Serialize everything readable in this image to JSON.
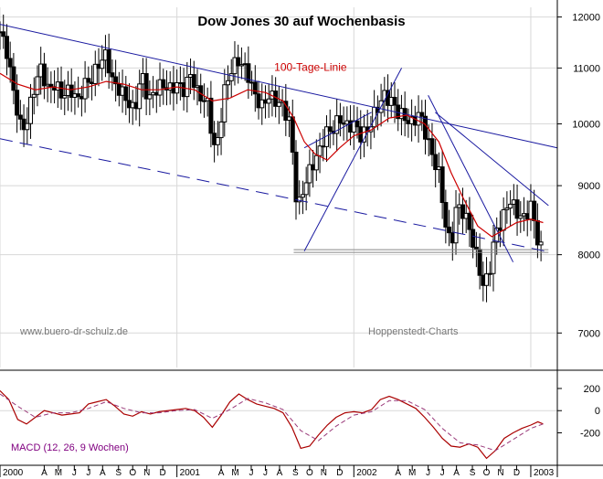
{
  "chart_data": [
    {
      "type": "candlestick",
      "title": "Dow Jones 30 auf Wochenbasis",
      "watermarks": [
        "www.buero-dr-schulz.de",
        "Hoppenstedt-Charts"
      ],
      "y_scale": "log",
      "ylim": [
        6600,
        12200
      ],
      "y_ticks": [
        12000,
        11000,
        10000,
        9000,
        8000,
        7000
      ],
      "x_range": [
        2000.0,
        2003.15
      ],
      "x_tick_labels": [
        {
          "x": 2000.0,
          "label": "2000"
        },
        {
          "x": 2000.25,
          "label": "A"
        },
        {
          "x": 2000.33,
          "label": "M"
        },
        {
          "x": 2000.42,
          "label": "J"
        },
        {
          "x": 2000.5,
          "label": "J"
        },
        {
          "x": 2000.58,
          "label": "A"
        },
        {
          "x": 2000.67,
          "label": "S"
        },
        {
          "x": 2000.75,
          "label": "O"
        },
        {
          "x": 2000.83,
          "label": "N"
        },
        {
          "x": 2000.92,
          "label": "D"
        },
        {
          "x": 2001.0,
          "label": "2001"
        },
        {
          "x": 2001.25,
          "label": "A"
        },
        {
          "x": 2001.33,
          "label": "M"
        },
        {
          "x": 2001.42,
          "label": "J"
        },
        {
          "x": 2001.5,
          "label": "J"
        },
        {
          "x": 2001.58,
          "label": "A"
        },
        {
          "x": 2001.67,
          "label": "S"
        },
        {
          "x": 2001.75,
          "label": "O"
        },
        {
          "x": 2001.83,
          "label": "N"
        },
        {
          "x": 2001.92,
          "label": "D"
        },
        {
          "x": 2002.0,
          "label": "2002"
        },
        {
          "x": 2002.25,
          "label": "A"
        },
        {
          "x": 2002.33,
          "label": "M"
        },
        {
          "x": 2002.42,
          "label": "J"
        },
        {
          "x": 2002.5,
          "label": "J"
        },
        {
          "x": 2002.58,
          "label": "A"
        },
        {
          "x": 2002.67,
          "label": "S"
        },
        {
          "x": 2002.75,
          "label": "O"
        },
        {
          "x": 2002.83,
          "label": "N"
        },
        {
          "x": 2002.92,
          "label": "D"
        },
        {
          "x": 2003.0,
          "label": "2003"
        }
      ],
      "price_points": [
        {
          "x": 2000.0,
          "y": 11700
        },
        {
          "x": 2000.04,
          "y": 11300
        },
        {
          "x": 2000.08,
          "y": 10500
        },
        {
          "x": 2000.12,
          "y": 9900
        },
        {
          "x": 2000.15,
          "y": 10000
        },
        {
          "x": 2000.19,
          "y": 10600
        },
        {
          "x": 2000.23,
          "y": 11000
        },
        {
          "x": 2000.27,
          "y": 10600
        },
        {
          "x": 2000.31,
          "y": 10700
        },
        {
          "x": 2000.35,
          "y": 10500
        },
        {
          "x": 2000.4,
          "y": 10600
        },
        {
          "x": 2000.44,
          "y": 10400
        },
        {
          "x": 2000.48,
          "y": 10700
        },
        {
          "x": 2000.52,
          "y": 10800
        },
        {
          "x": 2000.56,
          "y": 11100
        },
        {
          "x": 2000.6,
          "y": 11250
        },
        {
          "x": 2000.64,
          "y": 10700
        },
        {
          "x": 2000.68,
          "y": 10600
        },
        {
          "x": 2000.72,
          "y": 10400
        },
        {
          "x": 2000.76,
          "y": 10200
        },
        {
          "x": 2000.8,
          "y": 10900
        },
        {
          "x": 2000.84,
          "y": 10400
        },
        {
          "x": 2000.88,
          "y": 10600
        },
        {
          "x": 2000.92,
          "y": 10700
        },
        {
          "x": 2000.96,
          "y": 10600
        },
        {
          "x": 2001.0,
          "y": 10700
        },
        {
          "x": 2001.04,
          "y": 10600
        },
        {
          "x": 2001.08,
          "y": 10900
        },
        {
          "x": 2001.12,
          "y": 10500
        },
        {
          "x": 2001.17,
          "y": 10400
        },
        {
          "x": 2001.21,
          "y": 9600
        },
        {
          "x": 2001.23,
          "y": 9700
        },
        {
          "x": 2001.27,
          "y": 10600
        },
        {
          "x": 2001.31,
          "y": 11000
        },
        {
          "x": 2001.35,
          "y": 11150
        },
        {
          "x": 2001.4,
          "y": 10900
        },
        {
          "x": 2001.44,
          "y": 10500
        },
        {
          "x": 2001.48,
          "y": 10300
        },
        {
          "x": 2001.52,
          "y": 10500
        },
        {
          "x": 2001.56,
          "y": 10400
        },
        {
          "x": 2001.6,
          "y": 10300
        },
        {
          "x": 2001.64,
          "y": 10000
        },
        {
          "x": 2001.68,
          "y": 8600
        },
        {
          "x": 2001.72,
          "y": 9000
        },
        {
          "x": 2001.76,
          "y": 9300
        },
        {
          "x": 2001.8,
          "y": 9500
        },
        {
          "x": 2001.84,
          "y": 9850
        },
        {
          "x": 2001.88,
          "y": 9900
        },
        {
          "x": 2001.92,
          "y": 10100
        },
        {
          "x": 2001.96,
          "y": 9950
        },
        {
          "x": 2002.0,
          "y": 10000
        },
        {
          "x": 2002.04,
          "y": 9800
        },
        {
          "x": 2002.08,
          "y": 9900
        },
        {
          "x": 2002.12,
          "y": 10200
        },
        {
          "x": 2002.17,
          "y": 10500
        },
        {
          "x": 2002.21,
          "y": 10400
        },
        {
          "x": 2002.25,
          "y": 10200
        },
        {
          "x": 2002.29,
          "y": 10100
        },
        {
          "x": 2002.33,
          "y": 10000
        },
        {
          "x": 2002.37,
          "y": 10200
        },
        {
          "x": 2002.4,
          "y": 9900
        },
        {
          "x": 2002.44,
          "y": 9500
        },
        {
          "x": 2002.48,
          "y": 9200
        },
        {
          "x": 2002.52,
          "y": 8400
        },
        {
          "x": 2002.55,
          "y": 8100
        },
        {
          "x": 2002.58,
          "y": 8700
        },
        {
          "x": 2002.62,
          "y": 8600
        },
        {
          "x": 2002.65,
          "y": 8400
        },
        {
          "x": 2002.69,
          "y": 8000
        },
        {
          "x": 2002.73,
          "y": 7600
        },
        {
          "x": 2002.76,
          "y": 7700
        },
        {
          "x": 2002.8,
          "y": 8300
        },
        {
          "x": 2002.84,
          "y": 8500
        },
        {
          "x": 2002.88,
          "y": 8800
        },
        {
          "x": 2002.92,
          "y": 8600
        },
        {
          "x": 2002.96,
          "y": 8500
        },
        {
          "x": 2003.0,
          "y": 8700
        },
        {
          "x": 2003.04,
          "y": 8200
        },
        {
          "x": 2003.07,
          "y": 8000
        }
      ],
      "ma_series": {
        "name": "100-Tage-Linie",
        "points": [
          {
            "x": 2000.0,
            "y": 10900
          },
          {
            "x": 2000.1,
            "y": 10700
          },
          {
            "x": 2000.2,
            "y": 10600
          },
          {
            "x": 2000.3,
            "y": 10650
          },
          {
            "x": 2000.4,
            "y": 10600
          },
          {
            "x": 2000.5,
            "y": 10650
          },
          {
            "x": 2000.6,
            "y": 10750
          },
          {
            "x": 2000.7,
            "y": 10700
          },
          {
            "x": 2000.8,
            "y": 10600
          },
          {
            "x": 2000.9,
            "y": 10600
          },
          {
            "x": 2001.0,
            "y": 10650
          },
          {
            "x": 2001.1,
            "y": 10600
          },
          {
            "x": 2001.2,
            "y": 10400
          },
          {
            "x": 2001.3,
            "y": 10450
          },
          {
            "x": 2001.4,
            "y": 10600
          },
          {
            "x": 2001.5,
            "y": 10550
          },
          {
            "x": 2001.6,
            "y": 10400
          },
          {
            "x": 2001.66,
            "y": 10100
          },
          {
            "x": 2001.72,
            "y": 9700
          },
          {
            "x": 2001.78,
            "y": 9500
          },
          {
            "x": 2001.85,
            "y": 9400
          },
          {
            "x": 2001.92,
            "y": 9600
          },
          {
            "x": 2002.0,
            "y": 9800
          },
          {
            "x": 2002.1,
            "y": 9900
          },
          {
            "x": 2002.2,
            "y": 10100
          },
          {
            "x": 2002.3,
            "y": 10150
          },
          {
            "x": 2002.4,
            "y": 10000
          },
          {
            "x": 2002.48,
            "y": 9700
          },
          {
            "x": 2002.55,
            "y": 9200
          },
          {
            "x": 2002.62,
            "y": 8800
          },
          {
            "x": 2002.7,
            "y": 8400
          },
          {
            "x": 2002.78,
            "y": 8250
          },
          {
            "x": 2002.85,
            "y": 8350
          },
          {
            "x": 2002.92,
            "y": 8450
          },
          {
            "x": 2003.0,
            "y": 8500
          },
          {
            "x": 2003.07,
            "y": 8450
          }
        ]
      },
      "trend_lines": [
        {
          "x": [
            2000.0,
            2003.15
          ],
          "y": [
            11850,
            9600
          ],
          "style": "solid"
        },
        {
          "x": [
            2000.0,
            2003.08
          ],
          "y": [
            9750,
            8050
          ],
          "style": "dashed"
        },
        {
          "x": [
            2001.72,
            2002.27
          ],
          "y": [
            8050,
            11000
          ],
          "style": "solid"
        },
        {
          "x": [
            2001.72,
            2002.1
          ],
          "y": [
            9600,
            10200
          ],
          "style": "solid"
        },
        {
          "x": [
            2002.42,
            2002.9
          ],
          "y": [
            10500,
            7900
          ],
          "style": "solid"
        },
        {
          "x": [
            2002.46,
            2003.1
          ],
          "y": [
            10200,
            8700
          ],
          "style": "solid"
        }
      ],
      "support_line": {
        "x": [
          2001.66,
          2003.1
        ],
        "y": 8050
      },
      "annotations": [
        {
          "text": "100-Tage-Linie",
          "x": 2001.55,
          "y": 10950
        }
      ]
    },
    {
      "type": "line",
      "series": [
        {
          "name": "MACD (12, 26, 9 Wochen)"
        }
      ],
      "ylim": [
        -460,
        340
      ],
      "y_ticks": [
        200,
        0,
        -200
      ],
      "macd": [
        {
          "x": 2000.0,
          "y": 180
        },
        {
          "x": 2000.05,
          "y": 100
        },
        {
          "x": 2000.1,
          "y": -80
        },
        {
          "x": 2000.15,
          "y": -120
        },
        {
          "x": 2000.2,
          "y": -60
        },
        {
          "x": 2000.25,
          "y": 0
        },
        {
          "x": 2000.3,
          "y": -20
        },
        {
          "x": 2000.35,
          "y": -40
        },
        {
          "x": 2000.4,
          "y": -30
        },
        {
          "x": 2000.45,
          "y": -20
        },
        {
          "x": 2000.5,
          "y": 60
        },
        {
          "x": 2000.55,
          "y": 80
        },
        {
          "x": 2000.6,
          "y": 100
        },
        {
          "x": 2000.65,
          "y": 40
        },
        {
          "x": 2000.7,
          "y": -30
        },
        {
          "x": 2000.75,
          "y": -50
        },
        {
          "x": 2000.8,
          "y": -10
        },
        {
          "x": 2000.85,
          "y": -30
        },
        {
          "x": 2000.9,
          "y": -10
        },
        {
          "x": 2001.0,
          "y": 10
        },
        {
          "x": 2001.05,
          "y": 20
        },
        {
          "x": 2001.1,
          "y": 0
        },
        {
          "x": 2001.15,
          "y": -60
        },
        {
          "x": 2001.2,
          "y": -150
        },
        {
          "x": 2001.25,
          "y": -40
        },
        {
          "x": 2001.3,
          "y": 80
        },
        {
          "x": 2001.35,
          "y": 150
        },
        {
          "x": 2001.4,
          "y": 100
        },
        {
          "x": 2001.45,
          "y": 60
        },
        {
          "x": 2001.5,
          "y": 40
        },
        {
          "x": 2001.55,
          "y": 20
        },
        {
          "x": 2001.6,
          "y": -20
        },
        {
          "x": 2001.65,
          "y": -150
        },
        {
          "x": 2001.7,
          "y": -340
        },
        {
          "x": 2001.75,
          "y": -320
        },
        {
          "x": 2001.8,
          "y": -220
        },
        {
          "x": 2001.85,
          "y": -130
        },
        {
          "x": 2001.9,
          "y": -60
        },
        {
          "x": 2001.95,
          "y": -20
        },
        {
          "x": 2002.0,
          "y": -10
        },
        {
          "x": 2002.05,
          "y": -20
        },
        {
          "x": 2002.1,
          "y": 10
        },
        {
          "x": 2002.15,
          "y": 100
        },
        {
          "x": 2002.2,
          "y": 130
        },
        {
          "x": 2002.25,
          "y": 100
        },
        {
          "x": 2002.3,
          "y": 60
        },
        {
          "x": 2002.35,
          "y": 20
        },
        {
          "x": 2002.4,
          "y": -60
        },
        {
          "x": 2002.45,
          "y": -150
        },
        {
          "x": 2002.5,
          "y": -250
        },
        {
          "x": 2002.55,
          "y": -320
        },
        {
          "x": 2002.6,
          "y": -330
        },
        {
          "x": 2002.65,
          "y": -300
        },
        {
          "x": 2002.7,
          "y": -330
        },
        {
          "x": 2002.75,
          "y": -430
        },
        {
          "x": 2002.8,
          "y": -360
        },
        {
          "x": 2002.85,
          "y": -250
        },
        {
          "x": 2002.9,
          "y": -200
        },
        {
          "x": 2002.95,
          "y": -160
        },
        {
          "x": 2003.0,
          "y": -130
        },
        {
          "x": 2003.04,
          "y": -100
        },
        {
          "x": 2003.07,
          "y": -120
        }
      ],
      "signal": [
        {
          "x": 2000.0,
          "y": 150
        },
        {
          "x": 2000.1,
          "y": 40
        },
        {
          "x": 2000.2,
          "y": -60
        },
        {
          "x": 2000.3,
          "y": -20
        },
        {
          "x": 2000.4,
          "y": -20
        },
        {
          "x": 2000.5,
          "y": 20
        },
        {
          "x": 2000.6,
          "y": 80
        },
        {
          "x": 2000.7,
          "y": 20
        },
        {
          "x": 2000.8,
          "y": -20
        },
        {
          "x": 2000.9,
          "y": -20
        },
        {
          "x": 2001.0,
          "y": 0
        },
        {
          "x": 2001.1,
          "y": 10
        },
        {
          "x": 2001.2,
          "y": -70
        },
        {
          "x": 2001.3,
          "y": 10
        },
        {
          "x": 2001.4,
          "y": 110
        },
        {
          "x": 2001.5,
          "y": 70
        },
        {
          "x": 2001.6,
          "y": 10
        },
        {
          "x": 2001.7,
          "y": -180
        },
        {
          "x": 2001.8,
          "y": -270
        },
        {
          "x": 2001.9,
          "y": -140
        },
        {
          "x": 2002.0,
          "y": -40
        },
        {
          "x": 2002.1,
          "y": -10
        },
        {
          "x": 2002.2,
          "y": 90
        },
        {
          "x": 2002.3,
          "y": 90
        },
        {
          "x": 2002.4,
          "y": 10
        },
        {
          "x": 2002.5,
          "y": -160
        },
        {
          "x": 2002.6,
          "y": -290
        },
        {
          "x": 2002.7,
          "y": -310
        },
        {
          "x": 2002.8,
          "y": -360
        },
        {
          "x": 2002.9,
          "y": -260
        },
        {
          "x": 2003.0,
          "y": -160
        },
        {
          "x": 2003.07,
          "y": -120
        }
      ]
    }
  ],
  "colors": {
    "candle": "#000000",
    "ma": "#cc0000",
    "trend": "#1a1aa0",
    "macd": "#aa0000",
    "signal": "#9a3a7a",
    "macd_label": "#800080",
    "watermark": "#777777",
    "grid": "#d8d8d8"
  }
}
